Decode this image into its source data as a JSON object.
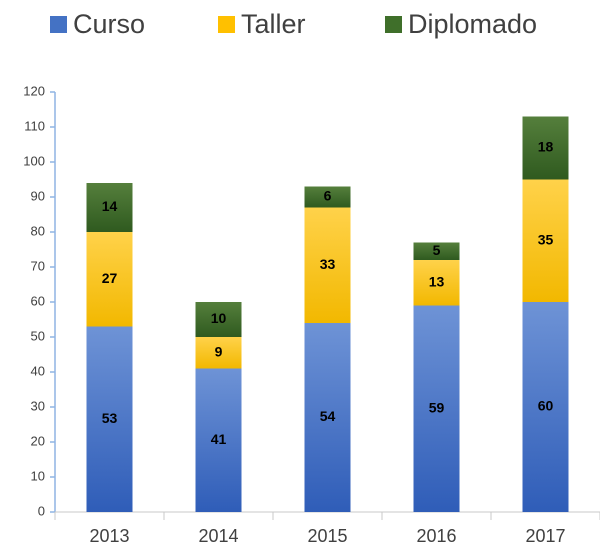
{
  "chart_data": {
    "type": "stacked_bar",
    "categories": [
      "2013",
      "2014",
      "2015",
      "2016",
      "2017"
    ],
    "series": [
      {
        "name": "Curso",
        "color": "#4472c4",
        "values": [
          53,
          41,
          54,
          59,
          60
        ]
      },
      {
        "name": "Taller",
        "color": "#ffc000",
        "values": [
          27,
          9,
          33,
          13,
          35
        ]
      },
      {
        "name": "Diplomado",
        "color": "#3f6f2a",
        "values": [
          14,
          10,
          6,
          5,
          18
        ]
      }
    ],
    "ylim": [
      0,
      120
    ],
    "yticks": [
      0,
      10,
      20,
      30,
      40,
      50,
      60,
      70,
      80,
      90,
      100,
      110,
      120
    ],
    "legend": "top"
  }
}
